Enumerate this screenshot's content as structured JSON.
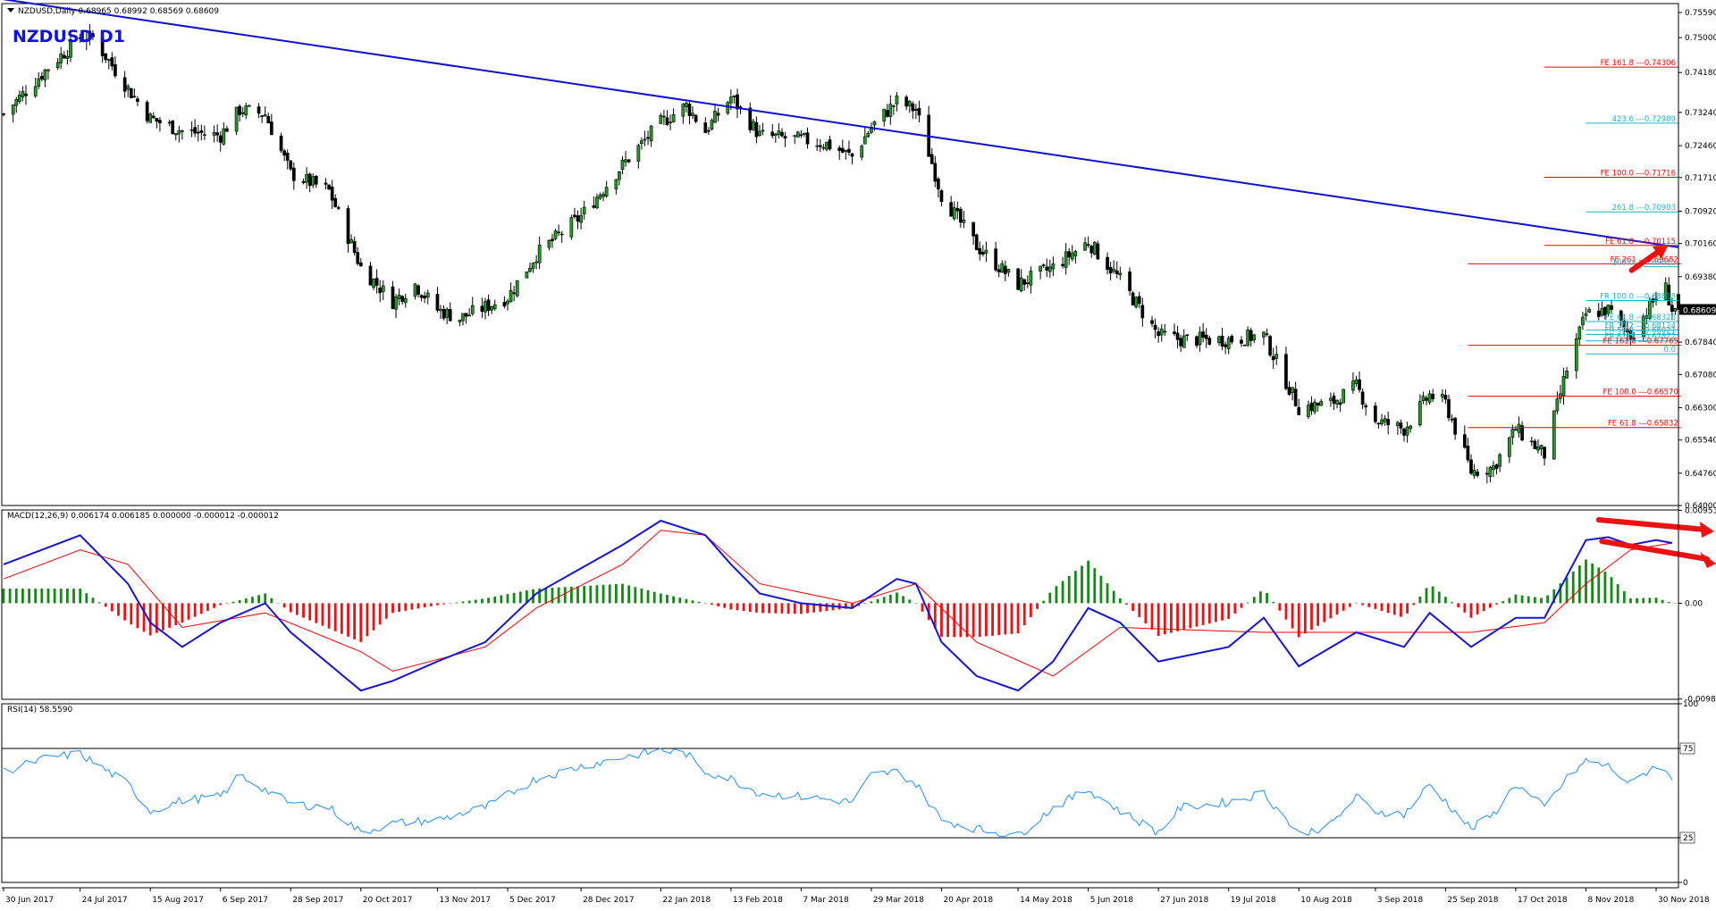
{
  "chart_data": [
    {
      "type": "candlestick",
      "title": "NZDUSD,Daily  0.68965 0.68992 0.68569 0.68609",
      "watermark": "NZDUSD    D1",
      "timeframe": "D1",
      "symbol": "NZDUSD",
      "ohlc_last": {
        "open": 0.68965,
        "high": 0.68992,
        "low": 0.68569,
        "close": 0.68609
      },
      "current_price_label": "0.68609",
      "ylim": [
        0.64,
        0.758
      ],
      "price_ticks": [
        "0.75590",
        "0.75000",
        "0.74180",
        "0.73240",
        "0.72460",
        "0.71710",
        "0.70920",
        "0.70160",
        "0.69380",
        "0.68609",
        "0.67840",
        "0.67080",
        "0.66300",
        "0.65540",
        "0.64760",
        "0.64000"
      ],
      "price_path": [
        [
          "30 Jun 2017",
          0.732
        ],
        [
          "14 Jul 2017",
          0.743
        ],
        [
          "24 Jul 2017",
          0.75
        ],
        [
          "28 Jul 2017",
          0.75
        ],
        [
          "8 Aug 2017",
          0.738
        ],
        [
          "15 Aug 2017",
          0.731
        ],
        [
          "25 Aug 2017",
          0.728
        ],
        [
          "6 Sep 2017",
          0.727
        ],
        [
          "12 Sep 2017",
          0.733
        ],
        [
          "20 Sep 2017",
          0.732
        ],
        [
          "28 Sep 2017",
          0.718
        ],
        [
          "10 Oct 2017",
          0.714
        ],
        [
          "20 Oct 2017",
          0.696
        ],
        [
          "30 Oct 2017",
          0.688
        ],
        [
          "6 Nov 2017",
          0.692
        ],
        [
          "13 Nov 2017",
          0.686
        ],
        [
          "20 Nov 2017",
          0.684
        ],
        [
          "5 Dec 2017",
          0.689
        ],
        [
          "14 Dec 2017",
          0.699
        ],
        [
          "28 Dec 2017",
          0.708
        ],
        [
          "10 Jan 2018",
          0.72
        ],
        [
          "22 Jan 2018",
          0.73
        ],
        [
          "30 Jan 2018",
          0.734
        ],
        [
          "5 Feb 2018",
          0.728
        ],
        [
          "13 Feb 2018",
          0.736
        ],
        [
          "22 Feb 2018",
          0.727
        ],
        [
          "7 Mar 2018",
          0.726
        ],
        [
          "15 Mar 2018",
          0.725
        ],
        [
          "23 Mar 2018",
          0.722
        ],
        [
          "29 Mar 2018",
          0.729
        ],
        [
          "6 Apr 2018",
          0.735
        ],
        [
          "12 Apr 2018",
          0.733
        ],
        [
          "20 Apr 2018",
          0.713
        ],
        [
          "1 May 2018",
          0.701
        ],
        [
          "14 May 2018",
          0.692
        ],
        [
          "25 May 2018",
          0.696
        ],
        [
          "5 Jun 2018",
          0.702
        ],
        [
          "15 Jun 2018",
          0.693
        ],
        [
          "27 Jun 2018",
          0.68
        ],
        [
          "4 Jul 2018",
          0.679
        ],
        [
          "19 Jul 2018",
          0.679
        ],
        [
          "30 Jul 2018",
          0.68
        ],
        [
          "10 Aug 2018",
          0.663
        ],
        [
          "20 Aug 2018",
          0.664
        ],
        [
          "28 Aug 2018",
          0.668
        ],
        [
          "3 Sep 2018",
          0.66
        ],
        [
          "12 Sep 2018",
          0.658
        ],
        [
          "20 Sep 2018",
          0.666
        ],
        [
          "25 Sep 2018",
          0.664
        ],
        [
          "3 Oct 2018",
          0.648
        ],
        [
          "10 Oct 2018",
          0.649
        ],
        [
          "17 Oct 2018",
          0.658
        ],
        [
          "26 Oct 2018",
          0.652
        ],
        [
          "2 Nov 2018",
          0.672
        ],
        [
          "8 Nov 2018",
          0.685
        ],
        [
          "15 Nov 2018",
          0.686
        ],
        [
          "22 Nov 2018",
          0.68
        ],
        [
          "30 Nov 2018",
          0.689
        ],
        [
          "3 Dec 2018",
          0.691
        ],
        [
          "5 Dec 2018",
          0.6861
        ]
      ],
      "trendline": {
        "from": [
          "30 Jun 2017",
          0.759
        ],
        "to": [
          "7 Dec 2018",
          0.7007
        ],
        "color": "#1010d0"
      },
      "levels": [
        {
          "label": "FE 161.8 ---0.74306",
          "value": 0.74306,
          "from": "26 Oct 2018",
          "color": "#ff0000"
        },
        {
          "label": "423.6 ---0.72989",
          "value": 0.72989,
          "from": "8 Nov 2018",
          "color": "#18b8c8"
        },
        {
          "label": "FE 100.0 ---0.71716",
          "value": 0.71716,
          "from": "26 Oct 2018",
          "color": "#ff0000"
        },
        {
          "label": "261.8 ---0.70903",
          "value": 0.70903,
          "from": "8 Nov 2018",
          "color": "#18b8c8"
        },
        {
          "label": "FE 61.8 ---0.70115",
          "value": 0.70115,
          "from": "26 Oct 2018",
          "color": "#ff0000"
        },
        {
          "label": "FE 261 ---0.69682",
          "value": 0.69682,
          "from": "2 Oct 2018",
          "color": "#ff0000",
          "end": "5 Dec 2018"
        },
        {
          "label": "100.0 ---0.69615",
          "value": 0.69615,
          "from": "26 Nov 2018",
          "color": "#18b8c8"
        },
        {
          "label": "FR 100.0 ---0.68818",
          "value": 0.68818,
          "from": "8 Nov 2018",
          "color": "#18b8c8"
        },
        {
          "label": "FE 61.8 ---0.68326",
          "value": 0.68326,
          "from": "8 Nov 2018",
          "color": "#18b8c8"
        },
        {
          "label": "FR 38.2 ---0.68124",
          "value": 0.68124,
          "from": "8 Nov 2018",
          "color": "#18b8c8"
        },
        {
          "label": "FR 50.0 ---0.68021",
          "value": 0.68021,
          "from": "8 Nov 2018",
          "color": "#18b8c8"
        },
        {
          "label": "FR 61.8 ---0.67872",
          "value": 0.67872,
          "from": "8 Nov 2018",
          "color": "#18b8c8"
        },
        {
          "label": "FE 161.8 ---0.67765",
          "value": 0.67765,
          "from": "2 Oct 2018",
          "color": "#ff0000",
          "end": "5 Dec 2018"
        },
        {
          "label": "0.0",
          "value": 0.67565,
          "from": "8 Nov 2018",
          "color": "#18b8c8"
        },
        {
          "label": "FE 100.0 ---0.66570",
          "value": 0.6657,
          "from": "2 Oct 2018",
          "color": "#ff0000",
          "end": "5 Dec 2018"
        },
        {
          "label": "FE 61.8 ---0.65832",
          "value": 0.65832,
          "from": "2 Oct 2018",
          "color": "#ff0000",
          "end": "5 Dec 2018"
        }
      ],
      "annotations": [
        {
          "kind": "arrow",
          "direction": "up-right",
          "color": "#ee1111"
        }
      ]
    },
    {
      "type": "histogram+line",
      "title": "MACD(12,26,9) 0.006174 0.006185 0.000000 -0.000012 -0.000012",
      "ylim": [
        -0.0099,
        0.0096
      ],
      "tick_labels": [
        "0.009537",
        "0.00",
        "-0.009885"
      ],
      "macd_path": [
        [
          "30 Jun 2017",
          0.004
        ],
        [
          "24 Jul 2017",
          0.007
        ],
        [
          "8 Aug 2017",
          0.002
        ],
        [
          "15 Aug 2017",
          -0.002
        ],
        [
          "25 Aug 2017",
          -0.0045
        ],
        [
          "6 Sep 2017",
          -0.002
        ],
        [
          "20 Sep 2017",
          0.0
        ],
        [
          "28 Sep 2017",
          -0.003
        ],
        [
          "20 Oct 2017",
          -0.009
        ],
        [
          "30 Oct 2017",
          -0.008
        ],
        [
          "13 Nov 2017",
          -0.006
        ],
        [
          "28 Nov 2017",
          -0.004
        ],
        [
          "14 Dec 2017",
          0.001
        ],
        [
          "10 Jan 2018",
          0.006
        ],
        [
          "22 Jan 2018",
          0.0085
        ],
        [
          "5 Feb 2018",
          0.007
        ],
        [
          "13 Feb 2018",
          0.004
        ],
        [
          "22 Feb 2018",
          0.001
        ],
        [
          "7 Mar 2018",
          0.0
        ],
        [
          "23 Mar 2018",
          -0.0005
        ],
        [
          "6 Apr 2018",
          0.0025
        ],
        [
          "12 Apr 2018",
          0.002
        ],
        [
          "20 Apr 2018",
          -0.004
        ],
        [
          "1 May 2018",
          -0.0075
        ],
        [
          "14 May 2018",
          -0.009
        ],
        [
          "25 May 2018",
          -0.006
        ],
        [
          "5 Jun 2018",
          -0.0005
        ],
        [
          "15 Jun 2018",
          -0.002
        ],
        [
          "27 Jun 2018",
          -0.006
        ],
        [
          "19 Jul 2018",
          -0.0045
        ],
        [
          "30 Jul 2018",
          -0.0015
        ],
        [
          "10 Aug 2018",
          -0.0065
        ],
        [
          "28 Aug 2018",
          -0.003
        ],
        [
          "12 Sep 2018",
          -0.0045
        ],
        [
          "20 Sep 2018",
          -0.001
        ],
        [
          "3 Oct 2018",
          -0.0045
        ],
        [
          "17 Oct 2018",
          -0.0015
        ],
        [
          "26 Oct 2018",
          -0.0015
        ],
        [
          "8 Nov 2018",
          0.0065
        ],
        [
          "15 Nov 2018",
          0.0068
        ],
        [
          "22 Nov 2018",
          0.006
        ],
        [
          "30 Nov 2018",
          0.0065
        ],
        [
          "5 Dec 2018",
          0.0062
        ]
      ],
      "signal_path": [
        [
          "30 Jun 2017",
          0.0025
        ],
        [
          "24 Jul 2017",
          0.0055
        ],
        [
          "8 Aug 2017",
          0.004
        ],
        [
          "25 Aug 2017",
          -0.0025
        ],
        [
          "20 Sep 2017",
          -0.001
        ],
        [
          "20 Oct 2017",
          -0.005
        ],
        [
          "30 Oct 2017",
          -0.007
        ],
        [
          "28 Nov 2017",
          -0.0045
        ],
        [
          "14 Dec 2017",
          -0.0005
        ],
        [
          "10 Jan 2018",
          0.004
        ],
        [
          "22 Jan 2018",
          0.0075
        ],
        [
          "5 Feb 2018",
          0.007
        ],
        [
          "22 Feb 2018",
          0.002
        ],
        [
          "23 Mar 2018",
          0.0
        ],
        [
          "12 Apr 2018",
          0.002
        ],
        [
          "1 May 2018",
          -0.004
        ],
        [
          "25 May 2018",
          -0.0075
        ],
        [
          "15 Jun 2018",
          -0.0025
        ],
        [
          "30 Jul 2018",
          -0.003
        ],
        [
          "20 Aug 2018",
          -0.003
        ],
        [
          "12 Sep 2018",
          -0.003
        ],
        [
          "3 Oct 2018",
          -0.003
        ],
        [
          "26 Oct 2018",
          -0.002
        ],
        [
          "8 Nov 2018",
          0.002
        ],
        [
          "22 Nov 2018",
          0.0055
        ],
        [
          "5 Dec 2018",
          0.0062
        ]
      ],
      "hist_color_up": "#138a13",
      "hist_color_down": "#ee1111",
      "annotations": [
        {
          "kind": "arrow",
          "direction": "right",
          "color": "#ee1111"
        },
        {
          "kind": "arrow",
          "direction": "down-right",
          "color": "#ee1111"
        }
      ]
    },
    {
      "type": "line",
      "title": "RSI(14) 58.5590",
      "ylim": [
        0,
        100
      ],
      "tick_labels": [
        "100",
        "75",
        "25",
        "0"
      ],
      "levels": [
        75,
        25
      ],
      "rsi_path": [
        [
          "30 Jun 2017",
          62
        ],
        [
          "14 Jul 2017",
          70
        ],
        [
          "24 Jul 2017",
          72
        ],
        [
          "8 Aug 2017",
          55
        ],
        [
          "15 Aug 2017",
          40
        ],
        [
          "25 Aug 2017",
          46
        ],
        [
          "6 Sep 2017",
          48
        ],
        [
          "12 Sep 2017",
          60
        ],
        [
          "20 Sep 2017",
          52
        ],
        [
          "28 Sep 2017",
          44
        ],
        [
          "10 Oct 2017",
          42
        ],
        [
          "20 Oct 2017",
          28
        ],
        [
          "30 Oct 2017",
          33
        ],
        [
          "13 Nov 2017",
          35
        ],
        [
          "28 Nov 2017",
          42
        ],
        [
          "14 Dec 2017",
          58
        ],
        [
          "28 Dec 2017",
          65
        ],
        [
          "10 Jan 2018",
          70
        ],
        [
          "22 Jan 2018",
          74
        ],
        [
          "30 Jan 2018",
          72
        ],
        [
          "5 Feb 2018",
          62
        ],
        [
          "13 Feb 2018",
          58
        ],
        [
          "22 Feb 2018",
          50
        ],
        [
          "7 Mar 2018",
          48
        ],
        [
          "23 Mar 2018",
          45
        ],
        [
          "29 Mar 2018",
          60
        ],
        [
          "6 Apr 2018",
          62
        ],
        [
          "12 Apr 2018",
          55
        ],
        [
          "20 Apr 2018",
          35
        ],
        [
          "1 May 2018",
          30
        ],
        [
          "14 May 2018",
          26
        ],
        [
          "25 May 2018",
          42
        ],
        [
          "5 Jun 2018",
          52
        ],
        [
          "15 Jun 2018",
          40
        ],
        [
          "27 Jun 2018",
          28
        ],
        [
          "4 Jul 2018",
          42
        ],
        [
          "19 Jul 2018",
          45
        ],
        [
          "30 Jul 2018",
          50
        ],
        [
          "10 Aug 2018",
          27
        ],
        [
          "20 Aug 2018",
          32
        ],
        [
          "28 Aug 2018",
          48
        ],
        [
          "3 Sep 2018",
          40
        ],
        [
          "12 Sep 2018",
          38
        ],
        [
          "20 Sep 2018",
          55
        ],
        [
          "3 Oct 2018",
          30
        ],
        [
          "10 Oct 2018",
          38
        ],
        [
          "17 Oct 2018",
          55
        ],
        [
          "26 Oct 2018",
          42
        ],
        [
          "2 Nov 2018",
          58
        ],
        [
          "8 Nov 2018",
          68
        ],
        [
          "15 Nov 2018",
          65
        ],
        [
          "22 Nov 2018",
          55
        ],
        [
          "30 Nov 2018",
          66
        ],
        [
          "5 Dec 2018",
          58
        ]
      ],
      "color": "#1e90ff"
    }
  ],
  "x_axis": {
    "tick_labels": [
      "30 Jun 2017",
      "24 Jul 2017",
      "15 Aug 2017",
      "6 Sep 2017",
      "28 Sep 2017",
      "20 Oct 2017",
      "13 Nov 2017",
      "5 Dec 2017",
      "28 Dec 2017",
      "22 Jan 2018",
      "13 Feb 2018",
      "7 Mar 2018",
      "29 Mar 2018",
      "20 Apr 2018",
      "14 May 2018",
      "5 Jun 2018",
      "27 Jun 2018",
      "19 Jul 2018",
      "10 Aug 2018",
      "3 Sep 2018",
      "25 Sep 2018",
      "17 Oct 2018",
      "8 Nov 2018",
      "30 Nov 2018"
    ],
    "range": [
      "30 Jun 2017",
      "7 Dec 2018"
    ]
  },
  "colors": {
    "bull_candle": "#1e9e1e",
    "bear_candle": "#000000",
    "current_price_bg": "#000000",
    "axis": "#000000"
  }
}
